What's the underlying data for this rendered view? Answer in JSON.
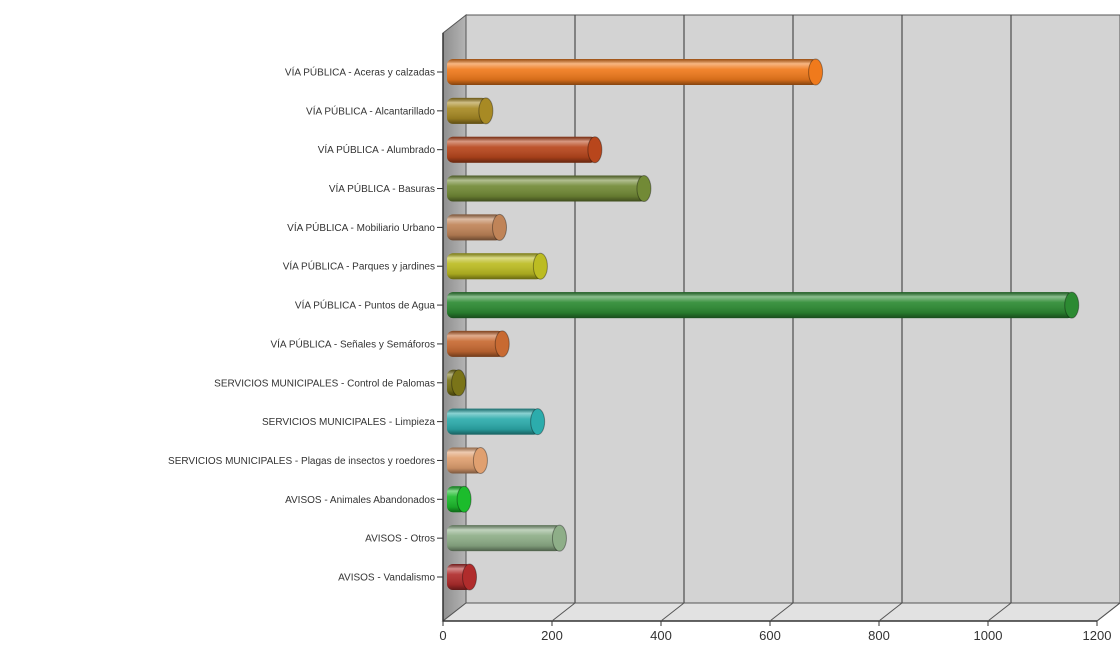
{
  "chart_data": {
    "type": "bar",
    "orientation": "horizontal",
    "style": "3d-cylinder",
    "title": "",
    "xlabel": "",
    "ylabel": "",
    "xlim": [
      0,
      1200
    ],
    "xticks": [
      "0",
      "200",
      "400",
      "600",
      "800",
      "1000",
      "1200"
    ],
    "grid": true,
    "legend": "none",
    "categories": [
      "VÍA PÚBLICA - Aceras y calzadas",
      "VÍA PÚBLICA - Alcantarillado",
      "VÍA PÚBLICA - Alumbrado",
      "VÍA PÚBLICA - Basuras",
      "VÍA PÚBLICA - Mobiliario Urbano",
      "VÍA PÚBLICA - Parques y jardines",
      "VÍA PÚBLICA - Puntos de Agua",
      "VÍA PÚBLICA - Señales y Semáforos",
      "SERVICIOS MUNICIPALES - Control de Palomas",
      "SERVICIOS MUNICIPALES - Limpieza",
      "SERVICIOS MUNICIPALES - Plagas de insectos y roedores",
      "AVISOS - Animales Abandonados",
      "AVISOS - Otros",
      "AVISOS - Vandalismo"
    ],
    "values": [
      680,
      75,
      275,
      365,
      100,
      175,
      1150,
      105,
      25,
      170,
      65,
      35,
      210,
      45
    ],
    "colors": [
      "#f07a1c",
      "#a88a24",
      "#b8461c",
      "#728a36",
      "#c08458",
      "#bcbc22",
      "#2c8a32",
      "#c86a32",
      "#7a7418",
      "#2cacac",
      "#e0a070",
      "#1cbc2c",
      "#8eae88",
      "#b02c2c"
    ]
  }
}
